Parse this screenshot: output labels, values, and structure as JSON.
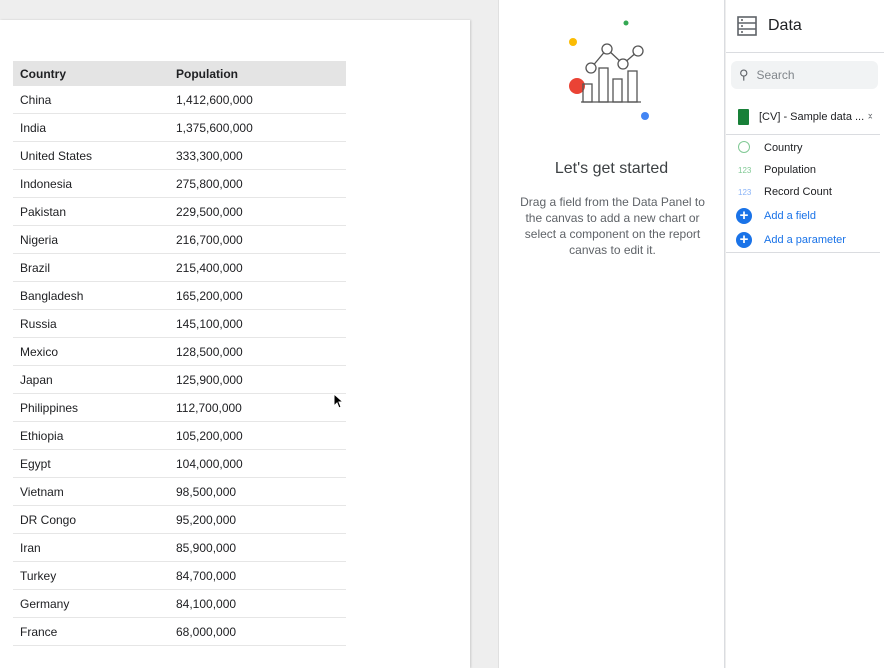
{
  "table": {
    "headers": [
      "Country",
      "Population"
    ],
    "rows": [
      [
        "China",
        "1,412,600,000"
      ],
      [
        "India",
        "1,375,600,000"
      ],
      [
        "United States",
        "333,300,000"
      ],
      [
        "Indonesia",
        "275,800,000"
      ],
      [
        "Pakistan",
        "229,500,000"
      ],
      [
        "Nigeria",
        "216,700,000"
      ],
      [
        "Brazil",
        "215,400,000"
      ],
      [
        "Bangladesh",
        "165,200,000"
      ],
      [
        "Russia",
        "145,100,000"
      ],
      [
        "Mexico",
        "128,500,000"
      ],
      [
        "Japan",
        "125,900,000"
      ],
      [
        "Philippines",
        "112,700,000"
      ],
      [
        "Ethiopia",
        "105,200,000"
      ],
      [
        "Egypt",
        "104,000,000"
      ],
      [
        "Vietnam",
        "98,500,000"
      ],
      [
        "DR Congo",
        "95,200,000"
      ],
      [
        "Iran",
        "85,900,000"
      ],
      [
        "Turkey",
        "84,700,000"
      ],
      [
        "Germany",
        "84,100,000"
      ],
      [
        "France",
        "68,000,000"
      ]
    ]
  },
  "empty_state": {
    "title": "Let's get started",
    "text": "Drag a field from the Data Panel to the canvas to add a new chart or select a component on the report canvas to edit it."
  },
  "data_panel": {
    "title": "Data",
    "search_placeholder": "Search",
    "source": "[CV] - Sample data ...",
    "fields": [
      {
        "icon": "globe-icon",
        "type": "",
        "name": "Country"
      },
      {
        "icon": "number-icon",
        "type": "123",
        "name": "Population"
      },
      {
        "icon": "number-icon",
        "type": "123",
        "name": "Record Count"
      }
    ],
    "add_field": "Add a field",
    "add_parameter": "Add a parameter"
  }
}
